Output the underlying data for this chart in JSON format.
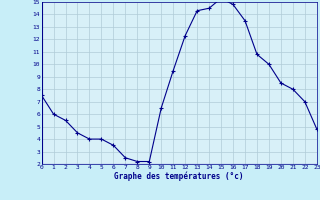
{
  "x": [
    0,
    1,
    2,
    3,
    4,
    5,
    6,
    7,
    8,
    9,
    10,
    11,
    12,
    13,
    14,
    15,
    16,
    17,
    18,
    19,
    20,
    21,
    22,
    23
  ],
  "y": [
    7.5,
    6.0,
    5.5,
    4.5,
    4.0,
    4.0,
    3.5,
    2.5,
    2.2,
    2.2,
    6.5,
    9.5,
    12.3,
    14.3,
    14.5,
    15.3,
    14.8,
    13.5,
    10.8,
    10.0,
    8.5,
    8.0,
    7.0,
    4.8
  ],
  "xlabel": "Graphe des températures (°c)",
  "xlim": [
    0,
    23
  ],
  "ylim": [
    2,
    15
  ],
  "yticks": [
    2,
    3,
    4,
    5,
    6,
    7,
    8,
    9,
    10,
    11,
    12,
    13,
    14,
    15
  ],
  "xticks": [
    0,
    1,
    2,
    3,
    4,
    5,
    6,
    7,
    8,
    9,
    10,
    11,
    12,
    13,
    14,
    15,
    16,
    17,
    18,
    19,
    20,
    21,
    22,
    23
  ],
  "line_color": "#00008b",
  "marker": "+",
  "bg_color": "#c8eef8",
  "grid_color": "#b0ccd8",
  "label_color": "#00008b",
  "tick_color": "#00008b",
  "axis_bg": "#d8f0f8"
}
